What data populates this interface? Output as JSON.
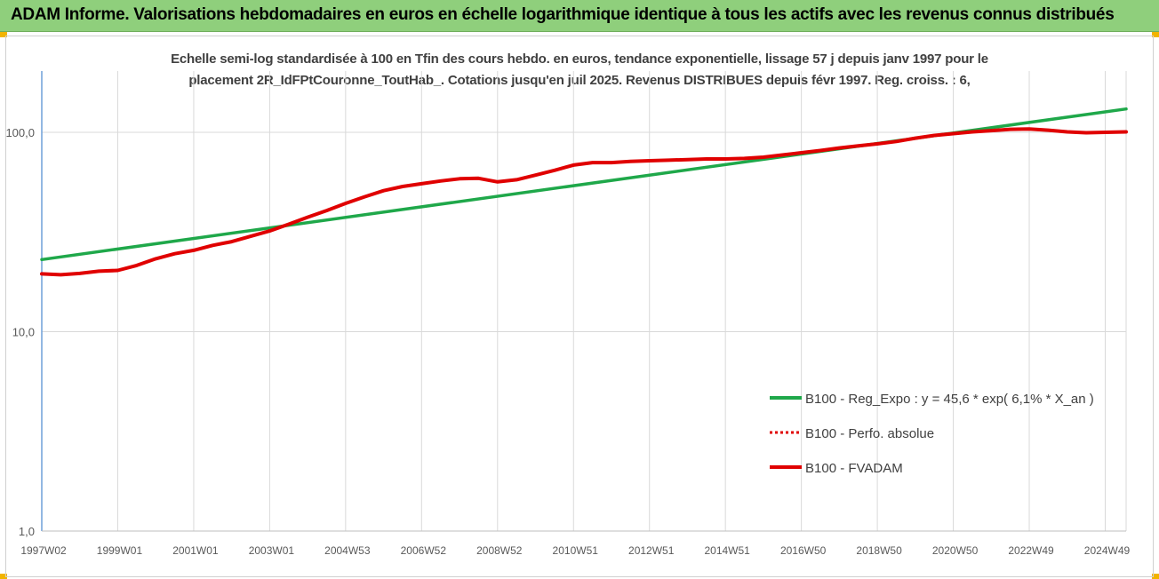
{
  "header": {
    "title": "ADAM Informe. Valorisations hebdomadaires en euros en échelle logarithmique identique à tous les actifs avec les revenus connus distribués"
  },
  "chart_data": {
    "type": "line",
    "title_line1": "Echelle semi-log standardisée à 100 en Tfin des cours hebdo. en euros, tendance exponentielle, lissage 57 j depuis janv 1997 pour le",
    "title_line2": "placement 2R_IdFPtCouronne_ToutHab_. Cotations jusqu'en juil 2025.  Revenus DISTRIBUES depuis févr 1997.  Reg. croiss. : 6,",
    "y_scale": "log",
    "ylim": [
      1,
      200
    ],
    "y_ticks": [
      {
        "value": 100,
        "label": "100,0"
      },
      {
        "value": 10,
        "label": "10,0"
      },
      {
        "value": 1,
        "label": "1,0"
      }
    ],
    "x_range": [
      1997.0,
      2025.55
    ],
    "x_ticks": [
      {
        "value": 1997.0,
        "label": "1997W02"
      },
      {
        "value": 1999.0,
        "label": "1999W01"
      },
      {
        "value": 2001.0,
        "label": "2001W01"
      },
      {
        "value": 2003.0,
        "label": "2003W01"
      },
      {
        "value": 2005.0,
        "label": "2004W53"
      },
      {
        "value": 2007.0,
        "label": "2006W52"
      },
      {
        "value": 2009.0,
        "label": "2008W52"
      },
      {
        "value": 2011.0,
        "label": "2010W51"
      },
      {
        "value": 2013.0,
        "label": "2012W51"
      },
      {
        "value": 2015.0,
        "label": "2014W51"
      },
      {
        "value": 2017.0,
        "label": "2016W50"
      },
      {
        "value": 2019.0,
        "label": "2018W50"
      },
      {
        "value": 2021.0,
        "label": "2020W50"
      },
      {
        "value": 2023.0,
        "label": "2022W49"
      },
      {
        "value": 2025.0,
        "label": "2024W49"
      }
    ],
    "grid": "vertical and horizontal",
    "legend_position": "bottom-right",
    "series": [
      {
        "name": "B100 - Reg_Expo : y = 45,6 * exp( 6,1% *  X_an )",
        "color": "#1fa84a",
        "style": "solid",
        "x": [
          1997.0,
          2025.55
        ],
        "y": [
          23.0,
          131.0
        ]
      },
      {
        "name": "B100 - Perfo. absolue",
        "color": "#e00000",
        "style": "dotted",
        "x": [],
        "y": []
      },
      {
        "name": "B100 - FVADAM",
        "color": "#e00000",
        "style": "solid",
        "x": [
          1997.0,
          1997.5,
          1998.0,
          1998.5,
          1999.0,
          1999.5,
          2000.0,
          2000.5,
          2001.0,
          2001.5,
          2002.0,
          2002.5,
          2003.0,
          2003.5,
          2004.0,
          2004.5,
          2005.0,
          2005.5,
          2006.0,
          2006.5,
          2007.0,
          2007.5,
          2008.0,
          2008.5,
          2009.0,
          2009.5,
          2010.0,
          2010.5,
          2011.0,
          2011.5,
          2012.0,
          2012.5,
          2013.0,
          2013.5,
          2014.0,
          2014.5,
          2015.0,
          2015.5,
          2016.0,
          2016.5,
          2017.0,
          2017.5,
          2018.0,
          2018.5,
          2019.0,
          2019.5,
          2020.0,
          2020.5,
          2021.0,
          2021.5,
          2022.0,
          2022.5,
          2023.0,
          2023.5,
          2024.0,
          2024.5,
          2025.0,
          2025.55
        ],
        "y": [
          19.5,
          19.3,
          19.6,
          20.1,
          20.3,
          21.5,
          23.2,
          24.6,
          25.6,
          27.1,
          28.3,
          30.1,
          32.0,
          34.6,
          37.5,
          40.5,
          44.0,
          47.5,
          51.0,
          53.5,
          55.2,
          57.0,
          58.5,
          58.8,
          56.4,
          57.8,
          61.0,
          64.5,
          68.5,
          70.5,
          70.5,
          71.5,
          72.0,
          72.5,
          73.0,
          73.5,
          73.5,
          74.0,
          75.0,
          77.0,
          79.0,
          81.0,
          83.5,
          85.5,
          87.5,
          90.0,
          93.5,
          96.5,
          98.5,
          100.5,
          102.0,
          103.5,
          104.0,
          102.5,
          100.5,
          99.5,
          100.0,
          100.5
        ]
      }
    ]
  }
}
